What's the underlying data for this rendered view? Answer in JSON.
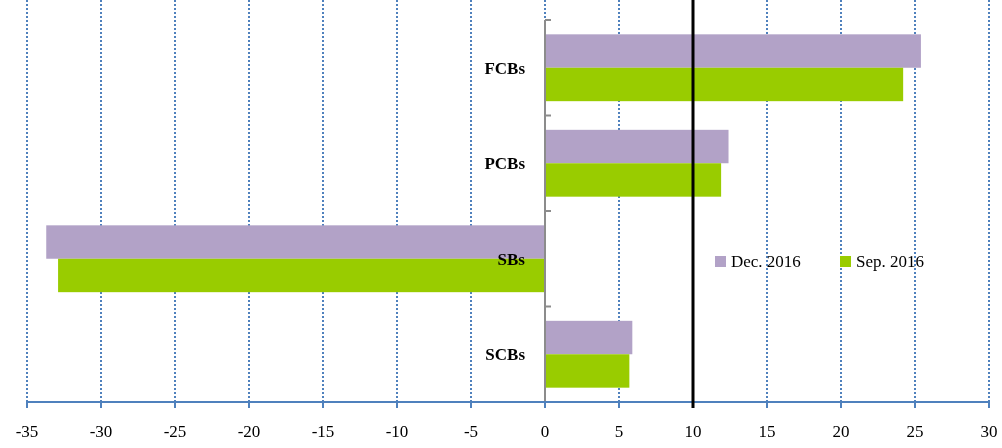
{
  "chart_data": {
    "type": "bar",
    "orientation": "horizontal",
    "categories": [
      "FCBs",
      "PCBs",
      "SBs",
      "SCBs"
    ],
    "series": [
      {
        "name": "Dec. 2016",
        "color": "#b2a2c7",
        "values": [
          25.4,
          12.4,
          -33.7,
          5.9
        ]
      },
      {
        "name": "Sep. 2016",
        "color": "#99cc00",
        "values": [
          24.2,
          11.9,
          -32.9,
          5.7
        ]
      }
    ],
    "xlim": [
      -35,
      30
    ],
    "xticks": [
      -35,
      -30,
      -25,
      -20,
      -15,
      -10,
      -5,
      0,
      5,
      10,
      15,
      20,
      25,
      30
    ],
    "grid": "x",
    "legend": "right",
    "ref_lines": [
      {
        "axis": "x",
        "value": 10,
        "color": "#000000"
      }
    ]
  }
}
